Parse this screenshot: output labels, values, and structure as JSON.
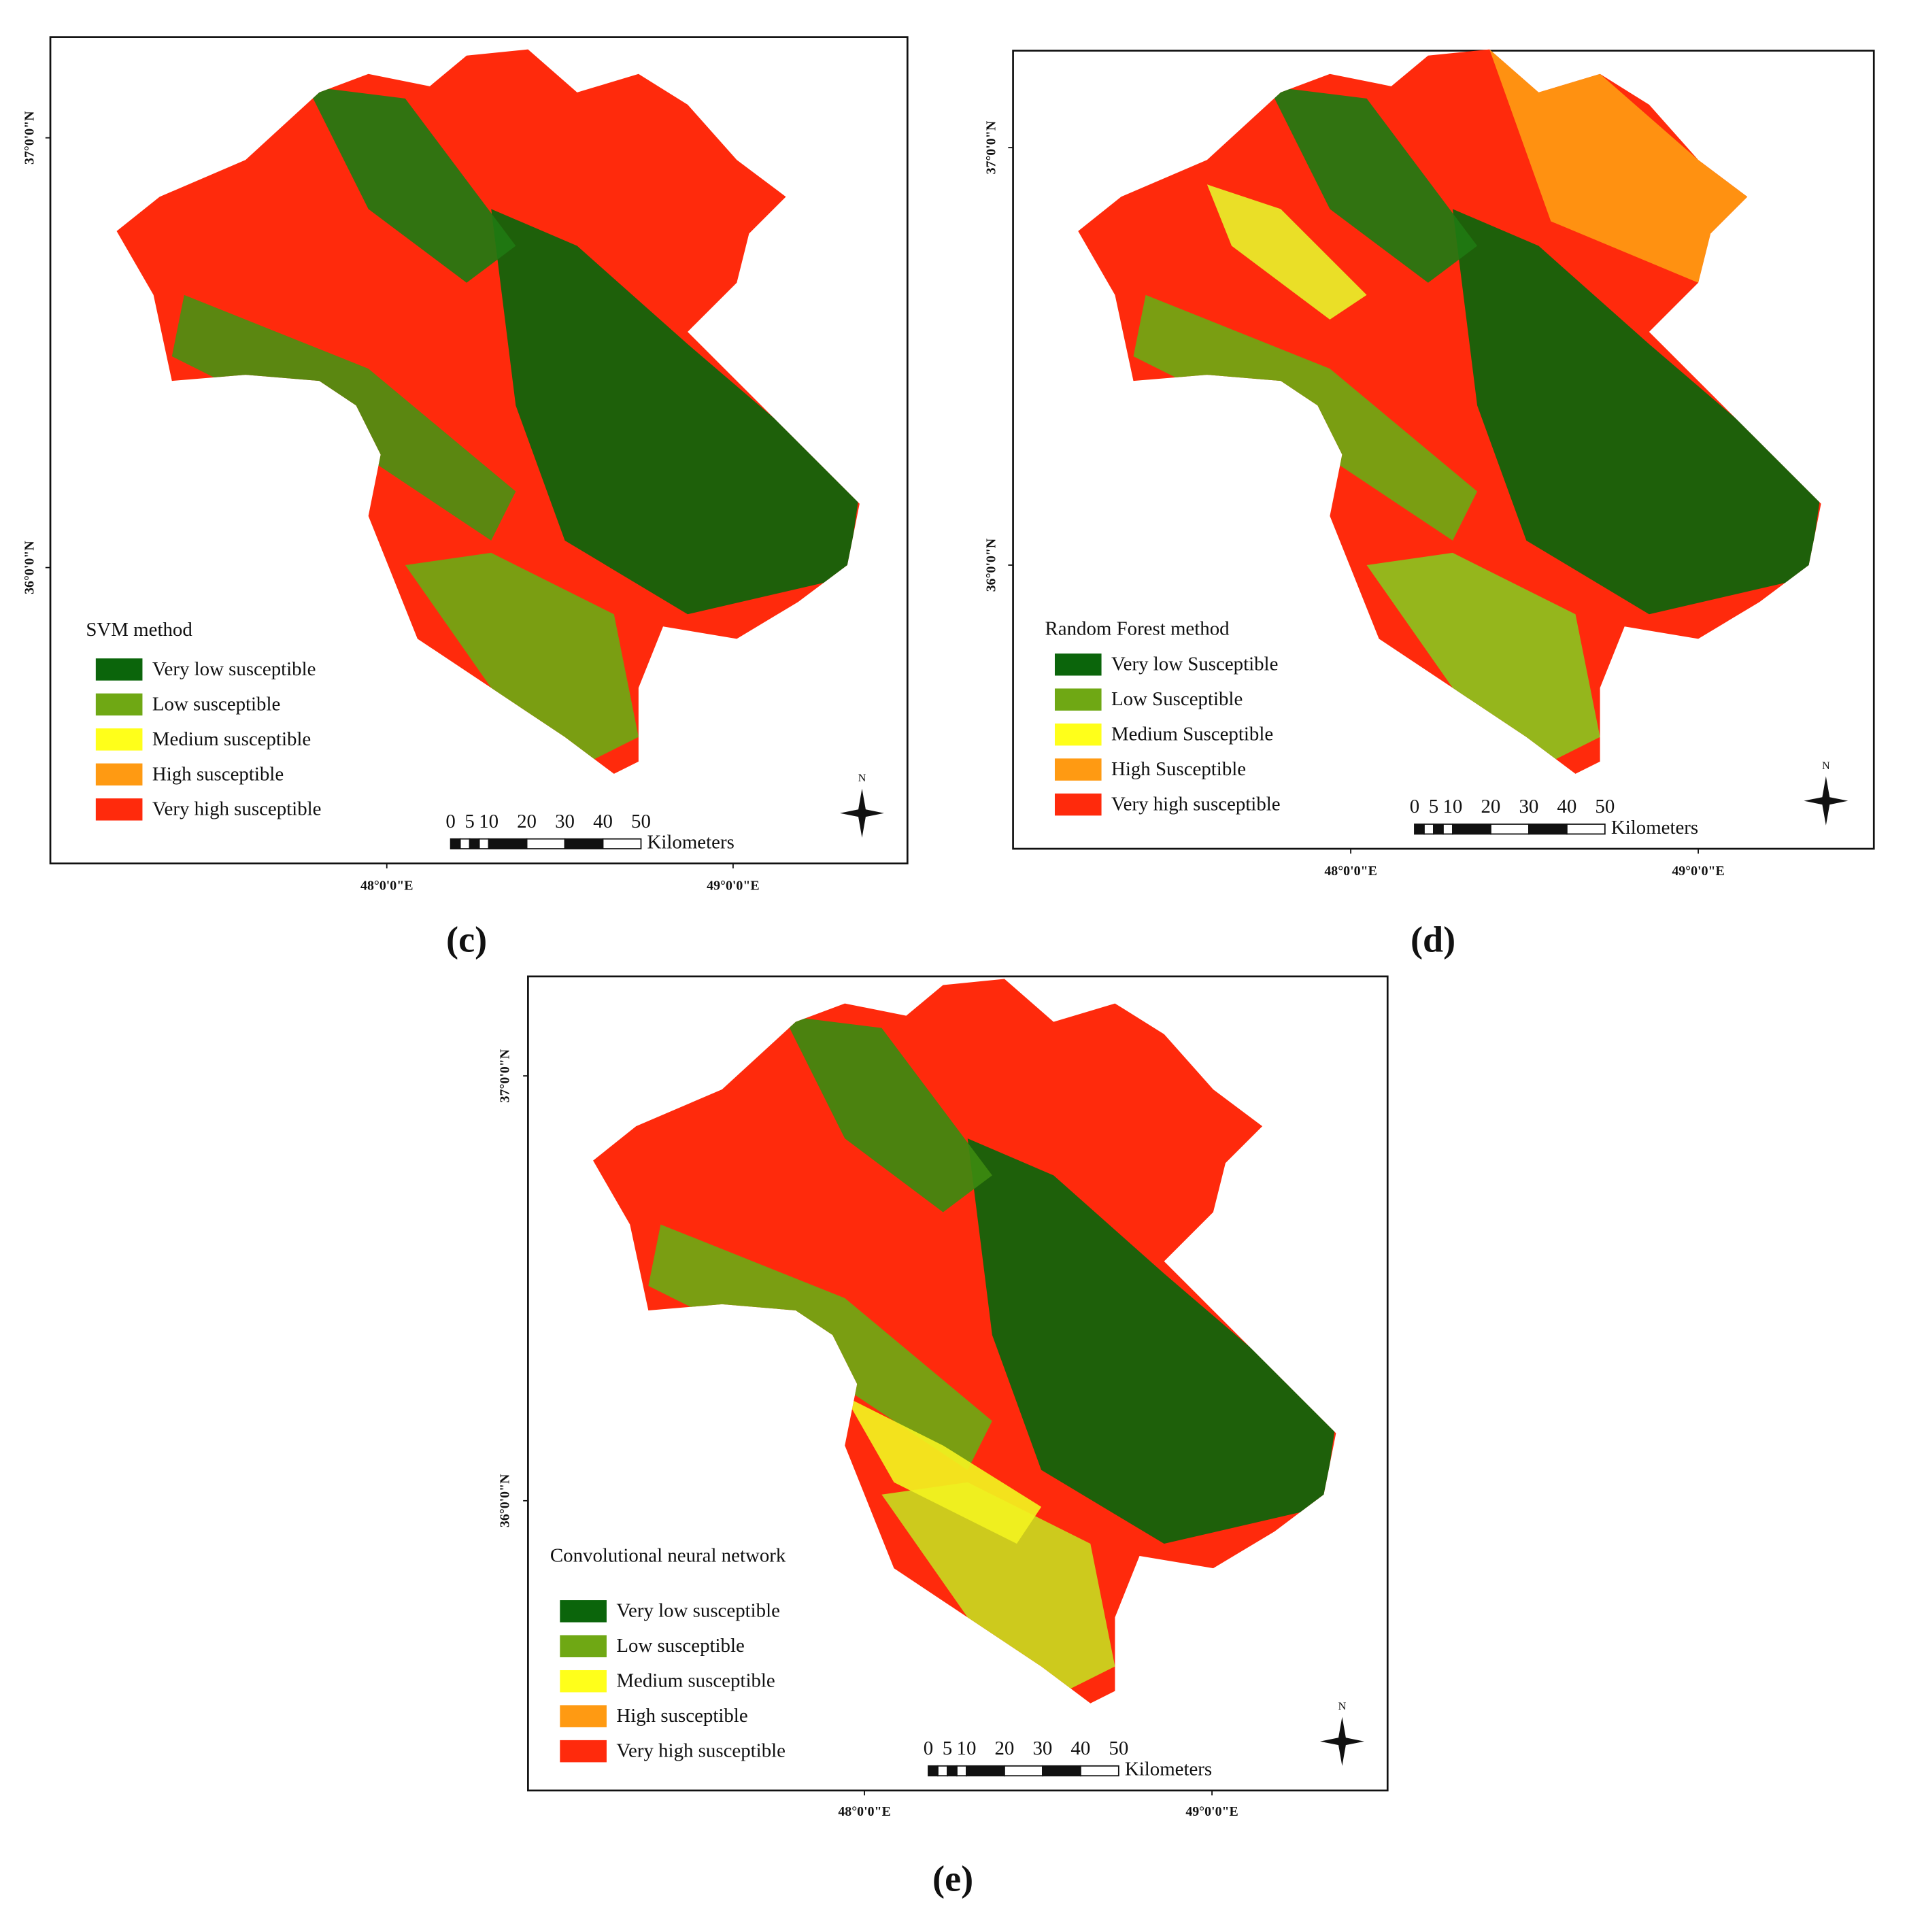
{
  "panels": [
    {
      "label": "(c)",
      "title": "SVM method",
      "legend": [
        {
          "label": "Very low susceptible",
          "color": "#0b650b"
        },
        {
          "label": "Low susceptible",
          "color": "#6fa814"
        },
        {
          "label": "Medium susceptible",
          "color": "#ffff1a"
        },
        {
          "label": "High susceptible",
          "color": "#ff9a12"
        },
        {
          "label": "Very high susceptible",
          "color": "#ff2a0c"
        }
      ],
      "lat_labels": [
        "37°0'0\"N",
        "36°0'0\"N"
      ],
      "lon_labels": [
        "48°0'0\"E",
        "49°0'0\"E"
      ],
      "scale_labels": [
        "0",
        "5",
        "10",
        "20",
        "30",
        "40",
        "50"
      ],
      "scale_unit": "Kilometers",
      "north": "N"
    },
    {
      "label": "(d)",
      "title": "Random Forest method",
      "legend": [
        {
          "label": "Very low Susceptible",
          "color": "#0b650b"
        },
        {
          "label": "Low Susceptible",
          "color": "#6fa814"
        },
        {
          "label": "Medium Susceptible",
          "color": "#ffff1a"
        },
        {
          "label": "High Susceptible",
          "color": "#ff9a12"
        },
        {
          "label": "Very high susceptible",
          "color": "#ff2a0c"
        }
      ],
      "lat_labels": [
        "37°0'0\"N",
        "36°0'0\"N"
      ],
      "lon_labels": [
        "48°0'0\"E",
        "49°0'0\"E"
      ],
      "scale_labels": [
        "0",
        "5",
        "10",
        "20",
        "30",
        "40",
        "50"
      ],
      "scale_unit": "Kilometers",
      "north": "N"
    },
    {
      "label": "(e)",
      "title": "Convolutional neural network",
      "legend": [
        {
          "label": "Very low susceptible",
          "color": "#0b650b"
        },
        {
          "label": "Low susceptible",
          "color": "#6fa814"
        },
        {
          "label": "Medium susceptible",
          "color": "#ffff1a"
        },
        {
          "label": "High susceptible",
          "color": "#ff9a12"
        },
        {
          "label": "Very high susceptible",
          "color": "#ff2a0c"
        }
      ],
      "lat_labels": [
        "37°0'0\"N",
        "36°0'0\"N"
      ],
      "lon_labels": [
        "48°0'0\"E",
        "49°0'0\"E"
      ],
      "scale_labels": [
        "0",
        "5",
        "10",
        "20",
        "30",
        "40",
        "50"
      ],
      "scale_unit": "Kilometers",
      "north": "N"
    }
  ]
}
